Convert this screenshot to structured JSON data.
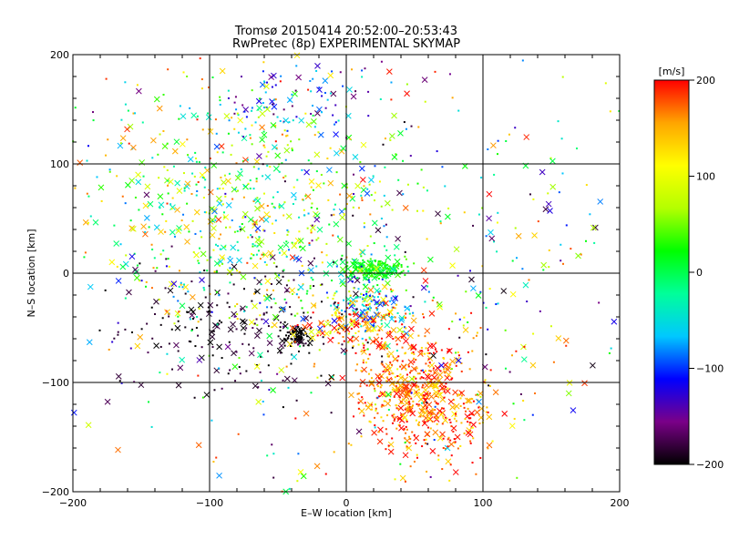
{
  "chart_data": {
    "type": "scatter",
    "title": "Tromsø 20150414 20:52:00–20:53:43",
    "subtitle": "RwPretec (8p) EXPERIMENTAL SKYMAP",
    "xlabel": "E–W location [km]",
    "ylabel": "N–S location [km]",
    "xlim": [
      -200,
      200
    ],
    "ylim": [
      -200,
      200
    ],
    "xticks": [
      "−200",
      "−100",
      "0",
      "100",
      "200"
    ],
    "yticks": [
      "−200",
      "−100",
      "0",
      "100",
      "200"
    ],
    "grid": true,
    "marker_types": [
      "x",
      "dot"
    ],
    "colorbar": {
      "label": "[m/s]",
      "range": [
        -200,
        200
      ],
      "ticks": [
        "200",
        "100",
        "0",
        "−100",
        "−200"
      ],
      "colors": [
        "#000000",
        "#7a0088",
        "#0000ff",
        "#00c8ff",
        "#00ff9a",
        "#00ff00",
        "#b4ff00",
        "#ffff00",
        "#ffa500",
        "#ff0000"
      ]
    },
    "clusters": [
      {
        "x": 48,
        "y": -105,
        "sx": 22,
        "sy": 28,
        "n": 520,
        "velocity": 170,
        "vspread": 50
      },
      {
        "x": 20,
        "y": 3,
        "sx": 12,
        "sy": 5,
        "n": 170,
        "velocity": 20,
        "vspread": 25
      },
      {
        "x": -38,
        "y": -57,
        "sx": 5,
        "sy": 5,
        "n": 60,
        "velocity": -200,
        "vspread": 10
      },
      {
        "x": 20,
        "y": -30,
        "sx": 12,
        "sy": 12,
        "n": 110,
        "velocity": -70,
        "vspread": 60
      },
      {
        "x": -35,
        "y": 160,
        "sx": 25,
        "sy": 20,
        "n": 80,
        "velocity": -110,
        "vspread": 70
      },
      {
        "x": -80,
        "y": -55,
        "sx": 45,
        "sy": 30,
        "n": 200,
        "velocity": -190,
        "vspread": 20
      },
      {
        "x": -70,
        "y": 40,
        "sx": 55,
        "sy": 45,
        "n": 380,
        "velocity": 40,
        "vspread": 130
      },
      {
        "x": -100,
        "y": 100,
        "sx": 60,
        "sy": 60,
        "n": 220,
        "velocity": 60,
        "vspread": 140
      },
      {
        "x": 0,
        "y": 0,
        "sx": 110,
        "sy": 110,
        "n": 650,
        "velocity": 0,
        "vspread": 200
      },
      {
        "x": 10,
        "y": -45,
        "sx": 18,
        "sy": 14,
        "n": 140,
        "velocity": 150,
        "vspread": 80
      },
      {
        "x": 85,
        "y": -140,
        "sx": 15,
        "sy": 20,
        "n": 70,
        "velocity": 170,
        "vspread": 60
      }
    ]
  }
}
